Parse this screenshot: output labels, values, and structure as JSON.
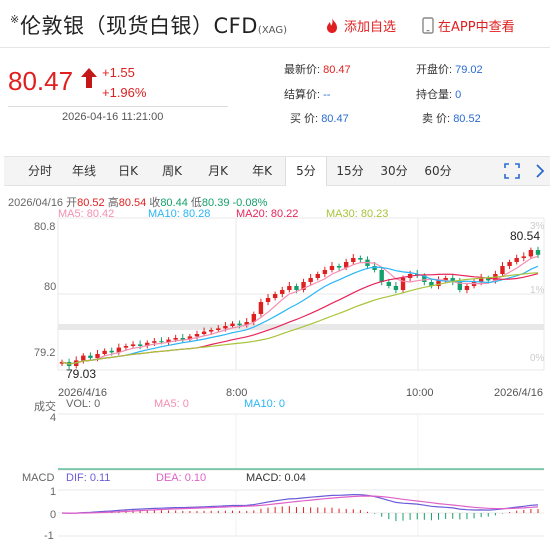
{
  "header": {
    "mark": "※",
    "title": "伦敦银（现货白银）CFD",
    "title_sub": "(XAG)",
    "add_watch": "添加自选",
    "app_view": "在APP中查看"
  },
  "quote": {
    "price": "80.47",
    "change_abs": "+1.55",
    "change_pct": "+1.96%",
    "time": "2026-04-16 11:21:00",
    "latest_label": "最新价:",
    "latest_value": "80.47",
    "open_label": "开盘价:",
    "open_value": "79.02",
    "settle_label": "结算价:",
    "settle_value": "--",
    "oi_label": "持仓量:",
    "oi_value": "0",
    "bid_label": "买 价:",
    "bid_value": "80.47",
    "ask_label": "卖 价:",
    "ask_value": "80.52"
  },
  "tabs": [
    {
      "label": "分时"
    },
    {
      "label": "年线"
    },
    {
      "label": "日K"
    },
    {
      "label": "周K"
    },
    {
      "label": "月K"
    },
    {
      "label": "年K"
    },
    {
      "label": "5分"
    },
    {
      "label": "15分"
    },
    {
      "label": "30分"
    },
    {
      "label": "60分"
    }
  ],
  "active_tab": 6,
  "ohlc_line": {
    "date": "2026/04/16",
    "open_label": "开",
    "open": "80.52",
    "high_label": "高",
    "high": "80.54",
    "close_label": "收",
    "close": "80.44",
    "low_label": "低",
    "low": "80.39",
    "pct": "-0.08%"
  },
  "ma_line": {
    "ma5": "MA5: 80.42",
    "ma10": "MA10: 80.28",
    "ma20": "MA20: 80.22",
    "ma30": "MA30: 80.23"
  },
  "price_axis": [
    "80.8",
    "80",
    "79.2"
  ],
  "pct_axis": [
    "3%",
    "1%",
    "0%"
  ],
  "max_label": "80.54",
  "min_label": "79.03",
  "time_axis": [
    "2026/4/16",
    "8:00",
    "10:00",
    "2026/4/16"
  ],
  "volume": {
    "label": "成交",
    "vol": "VOL: 0",
    "ma5": "MA5: 0",
    "ma10": "MA10: 0",
    "axis_top": "4"
  },
  "macd": {
    "label": "MACD",
    "dif": "DIF: 0.11",
    "dea": "DEA: 0.10",
    "macd": "MACD: 0.04",
    "axis": [
      "1",
      "0",
      "-1"
    ]
  },
  "colors": {
    "up": "#e02020",
    "down": "#14a06a",
    "ma5": "#f48fb1",
    "ma10": "#29b6f6",
    "ma20": "#e8245a",
    "ma30": "#a8c43a",
    "dif": "#6a5cd8",
    "dea": "#e060c8"
  },
  "chart_data": {
    "type": "candlestick",
    "interval": "5分",
    "y_range": [
      79.03,
      80.54
    ],
    "close_series": [
      79.1,
      79.05,
      79.12,
      79.18,
      79.15,
      79.2,
      79.24,
      79.22,
      79.28,
      79.3,
      79.32,
      79.3,
      79.34,
      79.36,
      79.35,
      79.38,
      79.4,
      79.38,
      79.42,
      79.45,
      79.48,
      79.5,
      79.52,
      79.55,
      79.58,
      79.56,
      79.6,
      79.7,
      79.85,
      79.9,
      79.95,
      80.0,
      80.05,
      80.0,
      80.1,
      80.15,
      80.2,
      80.25,
      80.3,
      80.28,
      80.35,
      80.4,
      80.38,
      80.3,
      80.25,
      80.1,
      80.05,
      80.0,
      80.15,
      80.2,
      80.18,
      80.1,
      80.05,
      80.12,
      80.15,
      80.1,
      80.0,
      80.05,
      80.1,
      80.15,
      80.12,
      80.2,
      80.3,
      80.35,
      80.4,
      80.42,
      80.5,
      80.44
    ]
  }
}
